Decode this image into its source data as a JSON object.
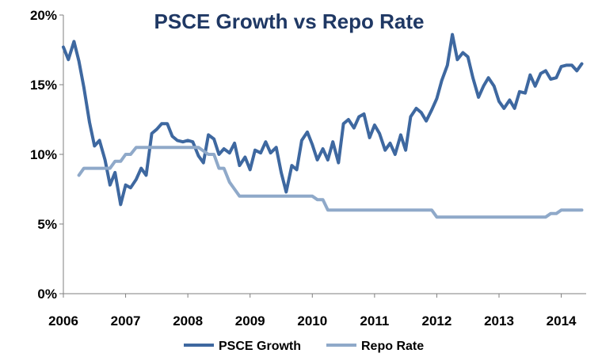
{
  "chart_data": {
    "type": "line",
    "title": "PSCE Growth vs Repo Rate",
    "xlabel": "",
    "ylabel": "",
    "xlim": [
      2006.0,
      2014.4
    ],
    "ylim": [
      0,
      20
    ],
    "x_ticks": [
      "2006",
      "2007",
      "2008",
      "2009",
      "2010",
      "2011",
      "2012",
      "2013",
      "2014"
    ],
    "y_ticks": [
      "0%",
      "5%",
      "10%",
      "15%",
      "20%"
    ],
    "y_tick_values": [
      0,
      5,
      10,
      15,
      20
    ],
    "grid": false,
    "legend_position": "bottom",
    "colors": {
      "PSCE Growth": "#3e68a0",
      "Repo Rate": "#8fa9c9",
      "title": "#1f3864"
    },
    "series": [
      {
        "name": "PSCE Growth",
        "x": [
          2006.0,
          2006.08,
          2006.17,
          2006.25,
          2006.33,
          2006.42,
          2006.5,
          2006.58,
          2006.67,
          2006.75,
          2006.83,
          2006.92,
          2007.0,
          2007.08,
          2007.17,
          2007.25,
          2007.33,
          2007.42,
          2007.5,
          2007.58,
          2007.67,
          2007.75,
          2007.83,
          2007.92,
          2008.0,
          2008.08,
          2008.17,
          2008.25,
          2008.33,
          2008.42,
          2008.5,
          2008.58,
          2008.67,
          2008.75,
          2008.83,
          2008.92,
          2009.0,
          2009.08,
          2009.17,
          2009.25,
          2009.33,
          2009.42,
          2009.5,
          2009.58,
          2009.67,
          2009.75,
          2009.83,
          2009.92,
          2010.0,
          2010.08,
          2010.17,
          2010.25,
          2010.33,
          2010.42,
          2010.5,
          2010.58,
          2010.67,
          2010.75,
          2010.83,
          2010.92,
          2011.0,
          2011.08,
          2011.17,
          2011.25,
          2011.33,
          2011.42,
          2011.5,
          2011.58,
          2011.67,
          2011.75,
          2011.83,
          2011.92,
          2012.0,
          2012.08,
          2012.17,
          2012.25,
          2012.33,
          2012.42,
          2012.5,
          2012.58,
          2012.67,
          2012.75,
          2012.83,
          2012.92,
          2013.0,
          2013.08,
          2013.17,
          2013.25,
          2013.33,
          2013.42,
          2013.5,
          2013.58,
          2013.67,
          2013.75,
          2013.83,
          2013.92,
          2014.0,
          2014.08,
          2014.17,
          2014.25,
          2014.33
        ],
        "values": [
          17.7,
          16.8,
          18.1,
          16.7,
          14.8,
          12.3,
          10.6,
          11.0,
          9.6,
          7.8,
          8.7,
          6.4,
          7.8,
          7.6,
          8.2,
          9.0,
          8.5,
          11.5,
          11.8,
          12.2,
          12.2,
          11.3,
          11.0,
          10.9,
          11.0,
          10.9,
          9.9,
          9.4,
          11.4,
          11.1,
          10.0,
          10.4,
          10.1,
          10.8,
          9.2,
          9.8,
          8.9,
          10.3,
          10.1,
          10.9,
          10.1,
          10.5,
          8.7,
          7.3,
          9.2,
          8.9,
          11.0,
          11.6,
          10.7,
          9.6,
          10.4,
          9.6,
          10.9,
          9.4,
          12.2,
          12.5,
          11.9,
          12.7,
          12.9,
          11.2,
          12.1,
          11.5,
          10.3,
          10.8,
          10.0,
          11.4,
          10.3,
          12.7,
          13.3,
          13.0,
          12.4,
          13.2,
          14.0,
          15.3,
          16.4,
          18.6,
          16.8,
          17.3,
          17.0,
          15.5,
          14.1,
          14.9,
          15.5,
          14.9,
          13.8,
          13.3,
          13.9,
          13.3,
          14.5,
          14.4,
          15.7,
          14.9,
          15.8,
          16.0,
          15.4,
          15.5,
          16.3,
          16.4,
          16.4,
          16.0,
          16.5
        ]
      },
      {
        "name": "Repo Rate",
        "x": [
          2006.25,
          2006.33,
          2006.5,
          2006.75,
          2006.83,
          2006.92,
          2007.0,
          2007.08,
          2007.17,
          2007.33,
          2007.5,
          2007.75,
          2008.0,
          2008.17,
          2008.33,
          2008.42,
          2008.5,
          2008.58,
          2008.67,
          2008.75,
          2008.83,
          2008.92,
          2009.0,
          2009.25,
          2009.5,
          2009.75,
          2010.0,
          2010.08,
          2010.17,
          2010.25,
          2010.33,
          2010.5,
          2010.75,
          2011.0,
          2011.25,
          2011.5,
          2011.75,
          2011.92,
          2012.0,
          2012.25,
          2012.5,
          2012.75,
          2013.0,
          2013.25,
          2013.5,
          2013.75,
          2013.83,
          2013.92,
          2014.0,
          2014.17,
          2014.33
        ],
        "values": [
          8.5,
          9.0,
          9.0,
          9.0,
          9.5,
          9.5,
          10.0,
          10.0,
          10.5,
          10.5,
          10.5,
          10.5,
          10.5,
          10.5,
          10.0,
          10.0,
          9.0,
          9.0,
          8.0,
          7.5,
          7.0,
          7.0,
          7.0,
          7.0,
          7.0,
          7.0,
          7.0,
          6.75,
          6.75,
          6.0,
          6.0,
          6.0,
          6.0,
          6.0,
          6.0,
          6.0,
          6.0,
          6.0,
          5.5,
          5.5,
          5.5,
          5.5,
          5.5,
          5.5,
          5.5,
          5.5,
          5.75,
          5.75,
          6.0,
          6.0,
          6.0
        ]
      }
    ]
  }
}
